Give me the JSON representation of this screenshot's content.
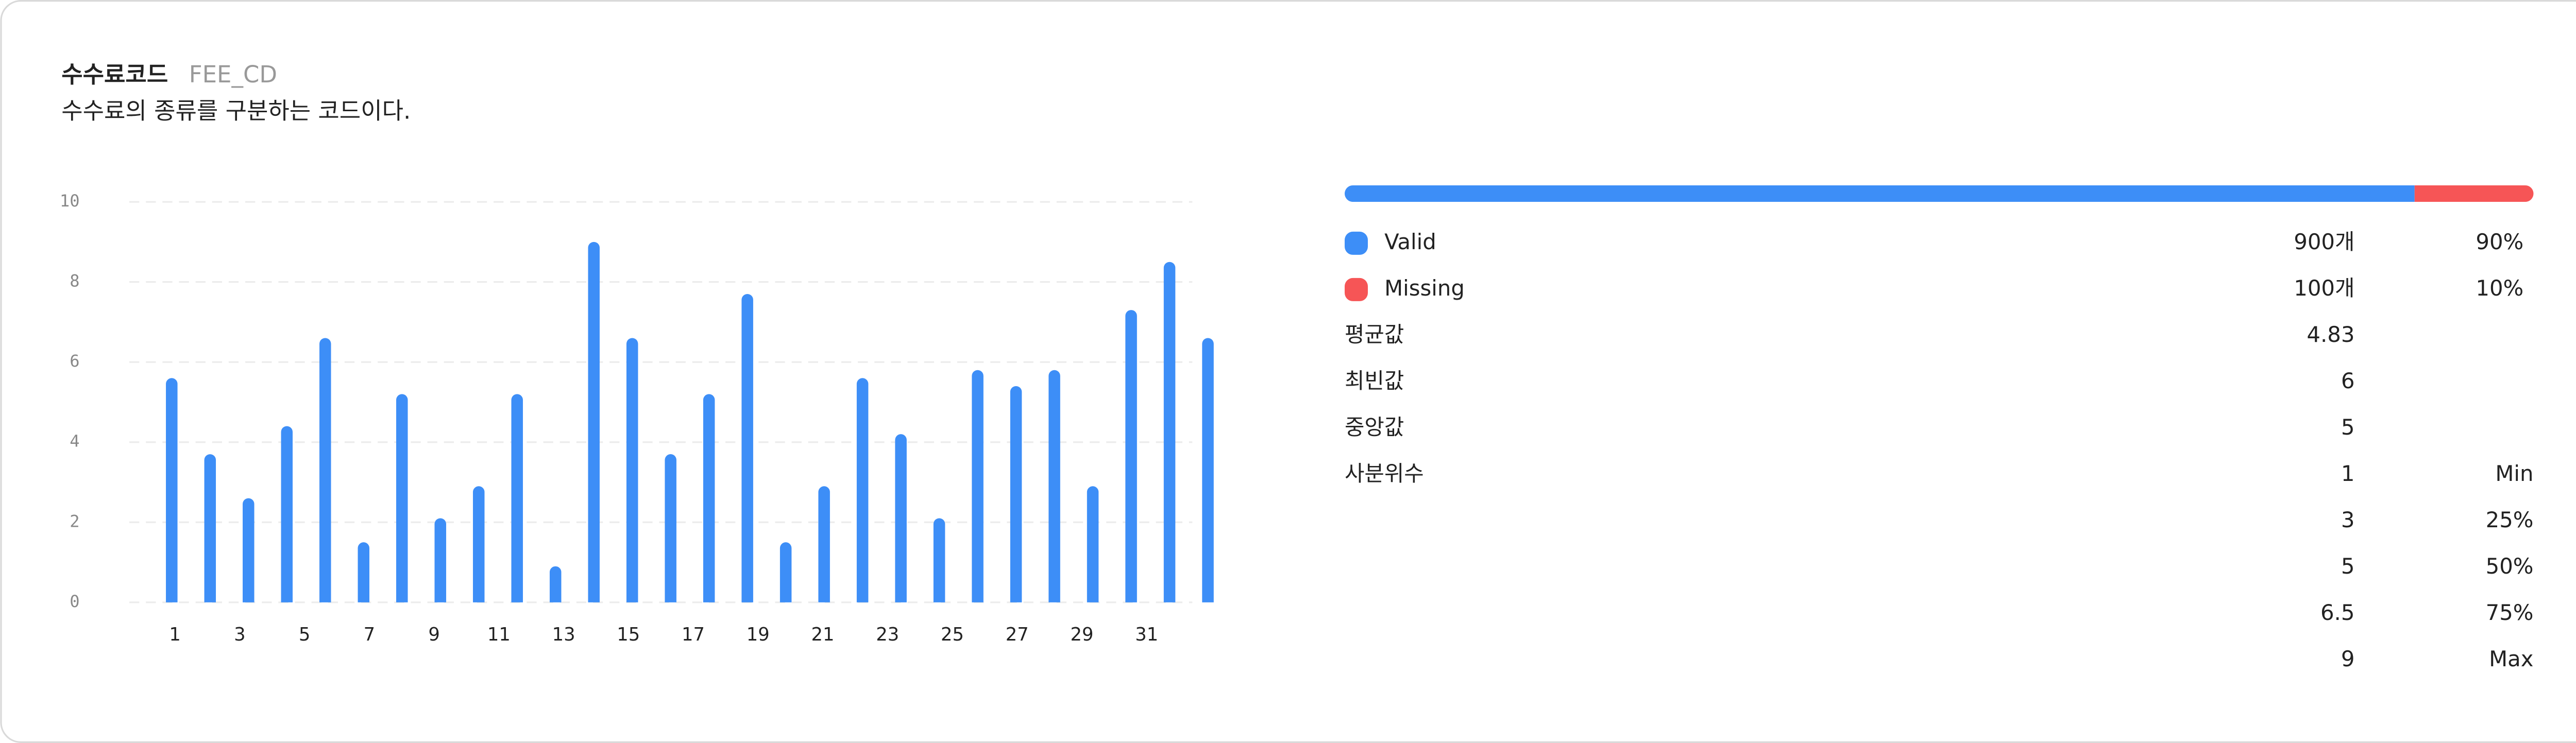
{
  "header": {
    "title": "수수료코드",
    "code": "FEE_CD",
    "description": "수수료의 종류를 구분하는 코드이다."
  },
  "chart_data": {
    "type": "bar",
    "color": "#3d8ef7",
    "categories": [
      null,
      null,
      null,
      null,
      null,
      null,
      null,
      null,
      null,
      null,
      null,
      null,
      null,
      null,
      null,
      null,
      null,
      null,
      null,
      null,
      null,
      null,
      null,
      null,
      null,
      null,
      null,
      null
    ],
    "values": [
      5.6,
      3.7,
      2.6,
      4.4,
      6.6,
      1.5,
      5.2,
      2.1,
      2.9,
      5.2,
      0.9,
      9.0,
      6.6,
      3.7,
      5.2,
      7.7,
      1.5,
      2.9,
      5.6,
      4.2,
      2.1,
      5.8,
      5.4,
      5.8,
      2.9,
      7.3,
      8.5,
      6.6
    ],
    "xlim": [
      0,
      32
    ],
    "xticks": [
      1,
      3,
      5,
      7,
      9,
      11,
      13,
      15,
      17,
      19,
      21,
      23,
      25,
      27,
      29,
      31
    ],
    "ylim": [
      0,
      10
    ],
    "yticks": [
      0,
      2,
      4,
      6,
      8,
      10
    ],
    "grid": true
  },
  "summary": {
    "completeness": [
      {
        "label": "Valid",
        "count": "900개",
        "percent": 90,
        "percent_label": "90%",
        "color": "#3d8ef7"
      },
      {
        "label": "Missing",
        "count": "100개",
        "percent": 10,
        "percent_label": "10%",
        "color": "#f65556"
      }
    ],
    "stats": [
      {
        "label": "평균값",
        "value": "4.83"
      },
      {
        "label": "최빈값",
        "value": "6"
      },
      {
        "label": "중앙값",
        "value": "5"
      }
    ],
    "quartile_label": "사분위수",
    "quartiles": [
      {
        "value": "1",
        "label": "Min"
      },
      {
        "value": "3",
        "label": "25%"
      },
      {
        "value": "5",
        "label": "50%"
      },
      {
        "value": "6.5",
        "label": "75%"
      },
      {
        "value": "9",
        "label": "Max"
      }
    ]
  }
}
